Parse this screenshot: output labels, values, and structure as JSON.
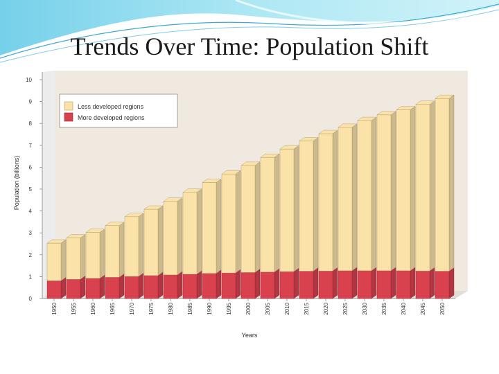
{
  "slide": {
    "title": "Trends Over Time: Population Shift"
  },
  "chart_data": {
    "type": "bar",
    "stacked": true,
    "title": "",
    "xlabel": "Years",
    "ylabel": "Population (billions)",
    "ylim": [
      0,
      10
    ],
    "yticks": [
      0,
      1,
      2,
      3,
      4,
      5,
      6,
      7,
      8,
      9,
      10
    ],
    "grid": false,
    "legend_position": "top-left",
    "categories": [
      "1950",
      "1955",
      "1960",
      "1965",
      "1970",
      "1975",
      "1980",
      "1985",
      "1990",
      "1995",
      "2000",
      "2005",
      "2010",
      "2015",
      "2020",
      "2025",
      "2030",
      "2035",
      "2040",
      "2045",
      "2050"
    ],
    "series": [
      {
        "name": "More developed regions",
        "color": "#d9414f",
        "values": [
          0.81,
          0.88,
          0.92,
          0.97,
          1.01,
          1.05,
          1.08,
          1.11,
          1.15,
          1.17,
          1.19,
          1.21,
          1.23,
          1.25,
          1.26,
          1.27,
          1.27,
          1.27,
          1.27,
          1.26,
          1.25
        ]
      },
      {
        "name": "Less developed regions",
        "color": "#fbe2a8",
        "values": [
          1.72,
          1.89,
          2.1,
          2.36,
          2.73,
          3.03,
          3.36,
          3.74,
          4.15,
          4.52,
          4.89,
          5.24,
          5.6,
          5.95,
          6.27,
          6.55,
          6.86,
          7.12,
          7.35,
          7.61,
          7.89
        ]
      }
    ]
  }
}
